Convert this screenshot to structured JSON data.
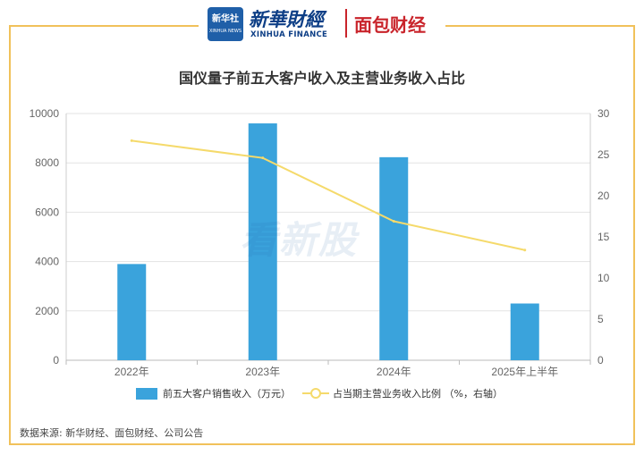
{
  "header": {
    "xinhua_badge": "新华社",
    "xinhua_badge_sub": "XINHUA NEWS",
    "xinhua_name": "新華財經",
    "xinhua_finance": "XINHUA FINANCE",
    "mianbao_logo": "面包财经"
  },
  "watermark": "看新股",
  "source_note": "数据来源: 新华财经、面包财经、公司公告",
  "colors": {
    "bar": "#3aa3dc",
    "line": "#f5da6b",
    "frame": "#f1c15a",
    "grid": "#e3e3e3"
  },
  "chart_data": {
    "type": "bar",
    "title": "国仪量子前五大客户收入及主营业务收入占比",
    "categories": [
      "2022年",
      "2023年",
      "2024年",
      "2025年上半年"
    ],
    "series": [
      {
        "name": "前五大客户销售收入（万元）",
        "type": "bar",
        "axis": "left",
        "values": [
          3900,
          9600,
          8230,
          2300
        ]
      },
      {
        "name": "占当期主营业务收入比例 （%，右轴）",
        "type": "line",
        "axis": "right",
        "values": [
          26.7,
          24.6,
          16.9,
          13.4
        ]
      }
    ],
    "y_left": {
      "range": [
        0,
        10000
      ],
      "ticks": [
        "0",
        "2000",
        "4000",
        "6000",
        "8000",
        "10000"
      ]
    },
    "y_right": {
      "range": [
        0,
        30
      ],
      "ticks": [
        "0",
        "5",
        "10",
        "15",
        "20",
        "25",
        "30"
      ]
    },
    "grid": true,
    "legend_position": "bottom"
  }
}
